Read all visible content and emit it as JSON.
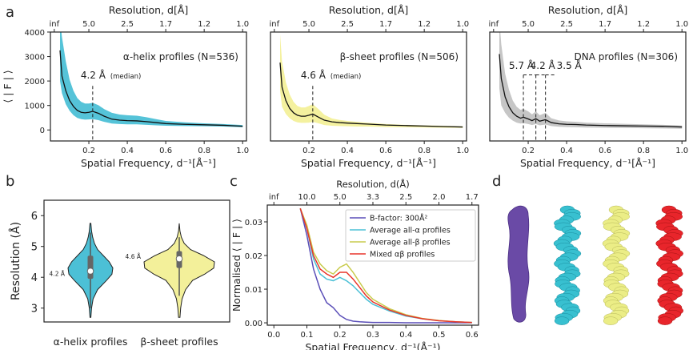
{
  "panels": {
    "a": "a",
    "b": "b",
    "c": "c",
    "d": "d"
  },
  "colors": {
    "helix": "#4cc0d6",
    "sheet": "#f3f09a",
    "dna": "#bcbcbc",
    "mean": "#111111",
    "bfactor": "#5b4fb8",
    "mixed": "#e8352b"
  },
  "chart_data": [
    {
      "type": "area",
      "panel": "a",
      "xlabel": "Spatial Frequency, d⁻¹[Å⁻¹]",
      "ylabel": "⟨ | F | ⟩",
      "top_xlabel": "Resolution, d[Å]",
      "xlim": [
        0,
        1.02
      ],
      "ylim": [
        -450,
        4000
      ],
      "yticks": [
        "0",
        "1000",
        "2000",
        "3000",
        "4000"
      ],
      "xticks": [
        "0.2",
        "0.4",
        "0.6",
        "0.8",
        "1.0"
      ],
      "top_ticks": [
        {
          "label": "inf",
          "x": 0.02
        },
        {
          "label": "5.0",
          "x": 0.2
        },
        {
          "label": "2.5",
          "x": 0.4
        },
        {
          "label": "1.7",
          "x": 0.6
        },
        {
          "label": "1.2",
          "x": 0.8
        },
        {
          "label": "1.0",
          "x": 1.0
        }
      ],
      "annotation": "α-helix profiles (N=536)",
      "marker_label": "4.2 Å",
      "marker_note": "(median)",
      "marker_x": 0.22,
      "x": [
        0.05,
        0.06,
        0.08,
        0.1,
        0.12,
        0.14,
        0.16,
        0.18,
        0.2,
        0.22,
        0.25,
        0.28,
        0.32,
        0.36,
        0.4,
        0.45,
        0.5,
        0.55,
        0.6,
        0.7,
        0.8,
        0.9,
        1.0
      ],
      "mean": [
        3250,
        2200,
        1600,
        1200,
        960,
        800,
        720,
        700,
        720,
        760,
        680,
        560,
        440,
        400,
        380,
        370,
        340,
        300,
        260,
        230,
        210,
        190,
        150
      ],
      "upper": [
        4500,
        3800,
        2800,
        2050,
        1600,
        1300,
        1150,
        1080,
        1080,
        1110,
        1010,
        850,
        700,
        630,
        600,
        580,
        520,
        440,
        370,
        310,
        270,
        240,
        200
      ],
      "lower": [
        2000,
        1500,
        1050,
        780,
        600,
        490,
        440,
        420,
        430,
        440,
        400,
        330,
        260,
        240,
        230,
        230,
        210,
        190,
        170,
        160,
        150,
        140,
        110
      ]
    },
    {
      "type": "area",
      "panel": "a",
      "xlabel": "Spatial Frequency, d⁻¹[Å⁻¹]",
      "top_xlabel": "Resolution, d[Å]",
      "xlim": [
        0,
        1.02
      ],
      "ylim": [
        -450,
        4000
      ],
      "xticks": [
        "0.2",
        "0.4",
        "0.6",
        "0.8",
        "1.0"
      ],
      "top_ticks": [
        {
          "label": "inf",
          "x": 0.02
        },
        {
          "label": "5.0",
          "x": 0.2
        },
        {
          "label": "2.5",
          "x": 0.4
        },
        {
          "label": "1.7",
          "x": 0.6
        },
        {
          "label": "1.2",
          "x": 0.8
        },
        {
          "label": "1.0",
          "x": 1.0
        }
      ],
      "annotation": "β-sheet profiles (N=506)",
      "marker_label": "4.6 Å",
      "marker_note": "(median)",
      "marker_x": 0.22,
      "x": [
        0.05,
        0.06,
        0.08,
        0.1,
        0.12,
        0.14,
        0.16,
        0.18,
        0.2,
        0.22,
        0.25,
        0.28,
        0.32,
        0.36,
        0.4,
        0.45,
        0.5,
        0.55,
        0.6,
        0.7,
        0.8,
        0.9,
        1.0
      ],
      "mean": [
        2750,
        1750,
        1200,
        880,
        700,
        600,
        560,
        560,
        600,
        650,
        520,
        400,
        330,
        300,
        280,
        260,
        240,
        220,
        200,
        180,
        160,
        140,
        120
      ],
      "upper": [
        3900,
        2800,
        1950,
        1450,
        1150,
        980,
        920,
        920,
        980,
        1050,
        850,
        620,
        470,
        410,
        370,
        330,
        300,
        270,
        240,
        210,
        190,
        170,
        150
      ],
      "lower": [
        1600,
        950,
        650,
        480,
        370,
        310,
        290,
        290,
        300,
        330,
        270,
        200,
        170,
        160,
        150,
        140,
        140,
        130,
        120,
        110,
        100,
        90,
        80
      ]
    },
    {
      "type": "area",
      "panel": "a",
      "xlabel": "Spatial Frequency, d⁻¹[Å⁻¹]",
      "top_xlabel": "Resolution, d[Å]",
      "xlim": [
        0,
        1.02
      ],
      "ylim": [
        -450,
        4000
      ],
      "xticks": [
        "0.2",
        "0.4",
        "0.6",
        "0.8",
        "1.0"
      ],
      "top_ticks": [
        {
          "label": "inf",
          "x": 0.02
        },
        {
          "label": "5.0",
          "x": 0.2
        },
        {
          "label": "2.5",
          "x": 0.4
        },
        {
          "label": "1.7",
          "x": 0.6
        },
        {
          "label": "1.2",
          "x": 0.8
        },
        {
          "label": "1.0",
          "x": 1.0
        }
      ],
      "annotation": "DNA profiles (N=306)",
      "markers": [
        {
          "label": "5.7 Å",
          "x": 0.175
        },
        {
          "label": "4.2 Å",
          "x": 0.24
        },
        {
          "label": "3.5 Å",
          "x": 0.29
        }
      ],
      "x": [
        0.05,
        0.06,
        0.08,
        0.1,
        0.12,
        0.14,
        0.16,
        0.175,
        0.2,
        0.22,
        0.24,
        0.26,
        0.29,
        0.32,
        0.36,
        0.4,
        0.45,
        0.5,
        0.6,
        0.7,
        0.8,
        0.9,
        1.0
      ],
      "mean": [
        3100,
        2100,
        1350,
        950,
        700,
        560,
        480,
        520,
        450,
        380,
        460,
        360,
        420,
        300,
        250,
        230,
        220,
        200,
        180,
        170,
        160,
        150,
        120
      ],
      "upper": [
        4500,
        3500,
        2300,
        1650,
        1200,
        950,
        820,
        860,
        760,
        640,
        760,
        600,
        700,
        480,
        390,
        350,
        330,
        300,
        270,
        250,
        230,
        210,
        180
      ],
      "lower": [
        1700,
        1000,
        700,
        500,
        380,
        300,
        260,
        280,
        240,
        200,
        240,
        190,
        220,
        160,
        130,
        120,
        110,
        100,
        90,
        80,
        70,
        60,
        50
      ]
    },
    {
      "type": "violin",
      "panel": "b",
      "ylabel": "Resolution (Å)",
      "ylim": [
        2.55,
        6.5
      ],
      "yticks": [
        "3",
        "4",
        "5",
        "6"
      ],
      "categories": [
        "α-helix profiles",
        "β-sheet profiles"
      ],
      "medians": [
        4.2,
        4.6
      ],
      "median_labels": [
        "4.2 Å",
        "4.6 Å"
      ],
      "q1": [
        3.95,
        4.3
      ],
      "q3": [
        4.7,
        4.85
      ],
      "min": [
        2.7,
        3.1
      ],
      "max": [
        5.75,
        5.6
      ],
      "y": [
        2.7,
        3.0,
        3.3,
        3.6,
        3.9,
        4.1,
        4.3,
        4.5,
        4.7,
        4.9,
        5.1,
        5.3,
        5.5,
        5.75
      ],
      "widths": [
        [
          0.02,
          0.05,
          0.12,
          0.32,
          0.72,
          0.96,
          1.0,
          0.84,
          0.58,
          0.32,
          0.18,
          0.1,
          0.05,
          0.02
        ],
        [
          0.02,
          0.04,
          0.08,
          0.18,
          0.38,
          0.72,
          0.98,
          1.0,
          0.7,
          0.32,
          0.14,
          0.06,
          0.02,
          0.0
        ]
      ]
    },
    {
      "type": "line",
      "panel": "c",
      "xlabel": "Spatial Frequency, d⁻¹(Å⁻¹)",
      "ylabel": "Normalised ⟨ | F | ⟩",
      "top_xlabel": "Resolution, d(Å)",
      "xlim": [
        -0.02,
        0.62
      ],
      "ylim": [
        -0.0007,
        0.035
      ],
      "xticks": [
        "0.0",
        "0.1",
        "0.2",
        "0.3",
        "0.4",
        "0.5",
        "0.6"
      ],
      "yticks": [
        "0.00",
        "0.01",
        "0.02",
        "0.03"
      ],
      "top_ticks": [
        {
          "label": "inf",
          "x": 0.0
        },
        {
          "label": "10.0",
          "x": 0.1
        },
        {
          "label": "5.0",
          "x": 0.2
        },
        {
          "label": "3.3",
          "x": 0.3
        },
        {
          "label": "2.5",
          "x": 0.4
        },
        {
          "label": "2.0",
          "x": 0.5
        },
        {
          "label": "1.7",
          "x": 0.6
        }
      ],
      "x": [
        0.08,
        0.1,
        0.12,
        0.14,
        0.16,
        0.18,
        0.2,
        0.22,
        0.24,
        0.26,
        0.28,
        0.3,
        0.35,
        0.4,
        0.45,
        0.5,
        0.55,
        0.6
      ],
      "series": [
        {
          "name": "B-factor: 300Å²",
          "color": "#5b4fb8",
          "values": [
            0.034,
            0.026,
            0.016,
            0.01,
            0.006,
            0.0045,
            0.0022,
            0.001,
            0.0005,
            0.0003,
            0.0002,
            0.0001,
            0.0001,
            0.0,
            0.0,
            0.0,
            0.0,
            0.0
          ]
        },
        {
          "name": "Average all-α profiles",
          "color": "#4cc0d6",
          "values": [
            0.034,
            0.028,
            0.019,
            0.0145,
            0.013,
            0.0125,
            0.0135,
            0.0125,
            0.011,
            0.009,
            0.007,
            0.0055,
            0.0035,
            0.002,
            0.0012,
            0.0006,
            0.0003,
            0.0001
          ]
        },
        {
          "name": "Average all-β profiles",
          "color": "#c9cc4e",
          "values": [
            0.034,
            0.029,
            0.021,
            0.0175,
            0.0155,
            0.0145,
            0.0165,
            0.0175,
            0.015,
            0.012,
            0.009,
            0.007,
            0.0042,
            0.0024,
            0.0013,
            0.0007,
            0.0003,
            0.0001
          ]
        },
        {
          "name": "Mixed αβ profiles",
          "color": "#e8352b",
          "values": [
            0.034,
            0.028,
            0.02,
            0.016,
            0.0145,
            0.0135,
            0.015,
            0.015,
            0.013,
            0.0105,
            0.008,
            0.0062,
            0.0038,
            0.0022,
            0.0012,
            0.0006,
            0.0003,
            0.0001
          ]
        }
      ]
    }
  ],
  "models": [
    {
      "name": "bfactor-model",
      "color": "#6a4aa6"
    },
    {
      "name": "alpha-model",
      "color": "#38c0d0"
    },
    {
      "name": "beta-model",
      "color": "#ebed86"
    },
    {
      "name": "mixed-model",
      "color": "#e8252b"
    }
  ]
}
